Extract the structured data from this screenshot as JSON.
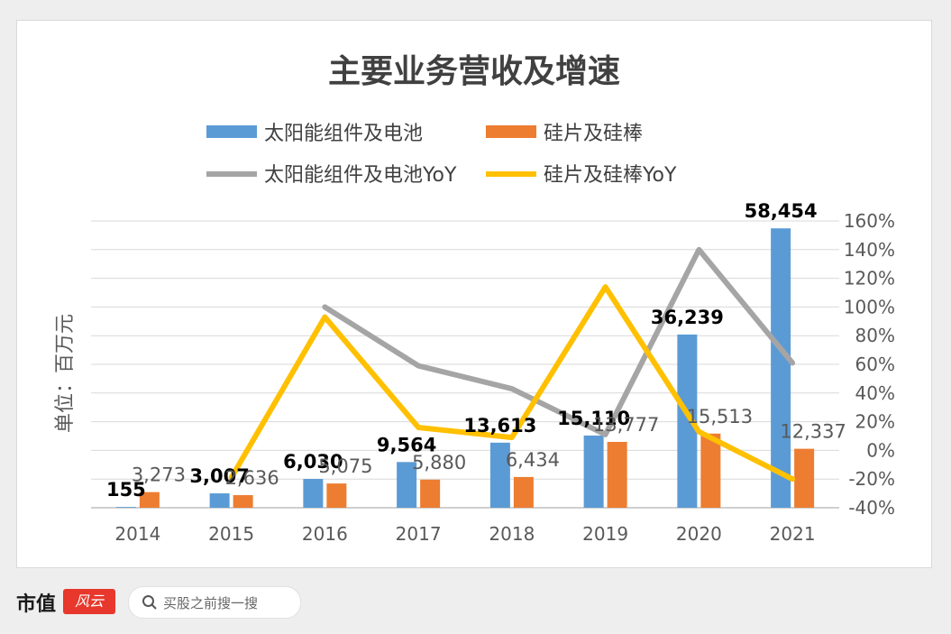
{
  "chart_data": {
    "type": "bar",
    "title": "主要业务营收及增速",
    "ylabel": "单位：百万元",
    "categories": [
      "2014",
      "2015",
      "2016",
      "2017",
      "2018",
      "2019",
      "2020",
      "2021"
    ],
    "ylim": [
      0,
      60000
    ],
    "y2lim": [
      -40,
      160
    ],
    "y2_ticks": [
      "160%",
      "140%",
      "120%",
      "100%",
      "80%",
      "60%",
      "40%",
      "20%",
      "0%",
      "-20%",
      "-40%"
    ],
    "grid": true,
    "legend_position": "top",
    "bar_series": [
      {
        "name": "太阳能组件及电池",
        "color": "#5b9bd5",
        "values": [
          155,
          3007,
          6030,
          9564,
          13613,
          15110,
          36239,
          58454
        ],
        "labels": [
          "155",
          "3,007",
          "6,030",
          "9,564",
          "13,613",
          "15,110",
          "36,239",
          "58,454"
        ]
      },
      {
        "name": "硅片及硅棒",
        "color": "#ed7d31",
        "values": [
          3273,
          2636,
          5075,
          5880,
          6434,
          13777,
          15513,
          12337
        ],
        "labels": [
          "3,273",
          "2,636",
          "5,075",
          "5,880",
          "6,434",
          "13,777",
          "15,513",
          "12,337"
        ]
      }
    ],
    "line_series": [
      {
        "name": "太阳能组件及电池YoY",
        "color": "#a5a5a5",
        "values": [
          null,
          null,
          100,
          59,
          43,
          11,
          140,
          61
        ]
      },
      {
        "name": "硅片及硅棒YoY",
        "color": "#ffc000",
        "values": [
          null,
          -19,
          93,
          16,
          9,
          114,
          13,
          -20
        ]
      }
    ]
  },
  "footer": {
    "brand": "市值",
    "logo_text": "风云",
    "search_placeholder": "买股之前搜一搜"
  }
}
